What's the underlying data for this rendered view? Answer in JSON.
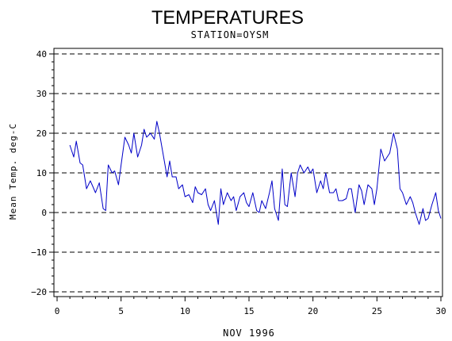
{
  "chart_data": {
    "type": "line",
    "title": "TEMPERATURES",
    "subtitle": "STATION=OYSM",
    "xlabel": "NOV 1996",
    "ylabel": "Mean Temp. deg-C",
    "xlim": [
      0,
      30
    ],
    "ylim": [
      -21,
      41
    ],
    "x_ticks": [
      0,
      5,
      10,
      15,
      20,
      25,
      30
    ],
    "y_ticks": [
      -20,
      -10,
      0,
      10,
      20,
      30,
      40
    ],
    "grid": "horizontal dashed at major y ticks",
    "line_color": "#0000c8",
    "series": [
      {
        "x": [
          1.0,
          1.3,
          1.5,
          1.8,
          2.0,
          2.3,
          2.6,
          2.8,
          3.0,
          3.3,
          3.6,
          3.8,
          4.0,
          4.3,
          4.5,
          4.8,
          5.0,
          5.3,
          5.6,
          5.8,
          6.0,
          6.3,
          6.6,
          6.8,
          7.0,
          7.3,
          7.6,
          7.8,
          8.0,
          8.3,
          8.6,
          8.8,
          9.0,
          9.3,
          9.5,
          9.8,
          10.0,
          10.3,
          10.6,
          10.8,
          11.0,
          11.3,
          11.6,
          11.8,
          12.0,
          12.3,
          12.6,
          12.8,
          13.0,
          13.3,
          13.6,
          13.8,
          14.0,
          14.3,
          14.6,
          14.8,
          15.0,
          15.3,
          15.6,
          15.8,
          16.0,
          16.3,
          16.6,
          16.8,
          17.0,
          17.3,
          17.6,
          17.8,
          18.0,
          18.3,
          18.6,
          18.8,
          19.0,
          19.3,
          19.6,
          19.8,
          20.0,
          20.3,
          20.6,
          20.8,
          21.0,
          21.3,
          21.6,
          21.8,
          22.0,
          22.3,
          22.6,
          22.8,
          23.0,
          23.3,
          23.6,
          23.8,
          24.0,
          24.3,
          24.6,
          24.8,
          25.0,
          25.3,
          25.6,
          25.8,
          26.0,
          26.3,
          26.6,
          26.8,
          27.0,
          27.3,
          27.6,
          27.8,
          28.0,
          28.3,
          28.6,
          28.8,
          29.0,
          29.3,
          29.6,
          29.8,
          30.0
        ],
        "y": [
          17.0,
          14.0,
          18.0,
          12.5,
          12.0,
          6.0,
          8.0,
          6.5,
          5.0,
          7.5,
          1.0,
          0.5,
          12.0,
          10.0,
          10.5,
          7.0,
          12.0,
          19.0,
          17.0,
          15.0,
          20.0,
          14.0,
          17.0,
          21.0,
          19.0,
          20.0,
          18.5,
          23.0,
          20.0,
          14.5,
          9.0,
          13.0,
          9.0,
          9.0,
          6.0,
          7.0,
          4.0,
          4.5,
          2.5,
          6.5,
          5.0,
          4.5,
          6.0,
          2.0,
          0.5,
          3.0,
          -3.0,
          6.0,
          2.0,
          5.0,
          3.0,
          4.0,
          0.5,
          4.0,
          5.0,
          2.5,
          1.5,
          5.0,
          0.5,
          0.0,
          3.0,
          1.0,
          5.0,
          8.0,
          1.0,
          -2.0,
          11.0,
          2.0,
          1.5,
          10.0,
          4.0,
          10.0,
          12.0,
          10.0,
          11.5,
          10.0,
          11.0,
          5.0,
          8.0,
          6.0,
          10.0,
          5.0,
          5.0,
          6.0,
          3.0,
          3.0,
          3.5,
          6.0,
          6.0,
          0.0,
          7.0,
          5.5,
          2.0,
          7.0,
          6.0,
          2.0,
          6.0,
          16.0,
          13.0,
          14.0,
          15.0,
          20.0,
          16.0,
          6.0,
          5.0,
          2.0,
          4.0,
          2.5,
          0.0,
          -3.0,
          1.0,
          -2.0,
          -1.5,
          2.0,
          5.0,
          0.5,
          -1.5
        ]
      }
    ]
  }
}
